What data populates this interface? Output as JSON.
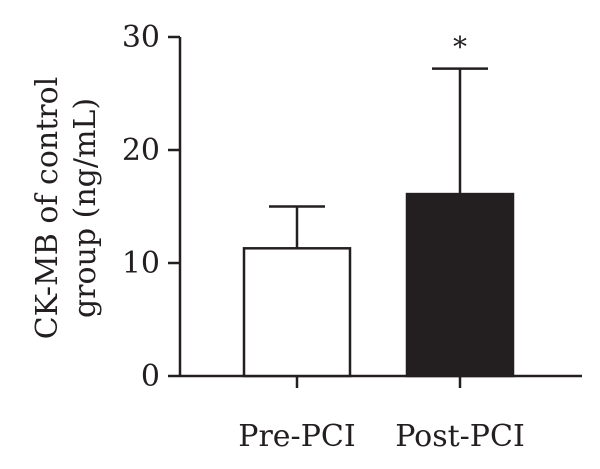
{
  "chart_data": {
    "type": "bar",
    "title": "",
    "xlabel": "",
    "ylabel_lines": [
      "CK-MB of control",
      "group (ng/mL)"
    ],
    "ylim": [
      0,
      30
    ],
    "yticks": [
      0,
      10,
      20,
      30
    ],
    "categories": [
      "Pre-PCI",
      "Post-PCI"
    ],
    "values": [
      11.3,
      16.1
    ],
    "error_upper": [
      15.0,
      27.2
    ],
    "bar_fills": [
      "#ffffff",
      "#231f20"
    ],
    "annotations": [
      "",
      "*"
    ],
    "grid": false
  }
}
